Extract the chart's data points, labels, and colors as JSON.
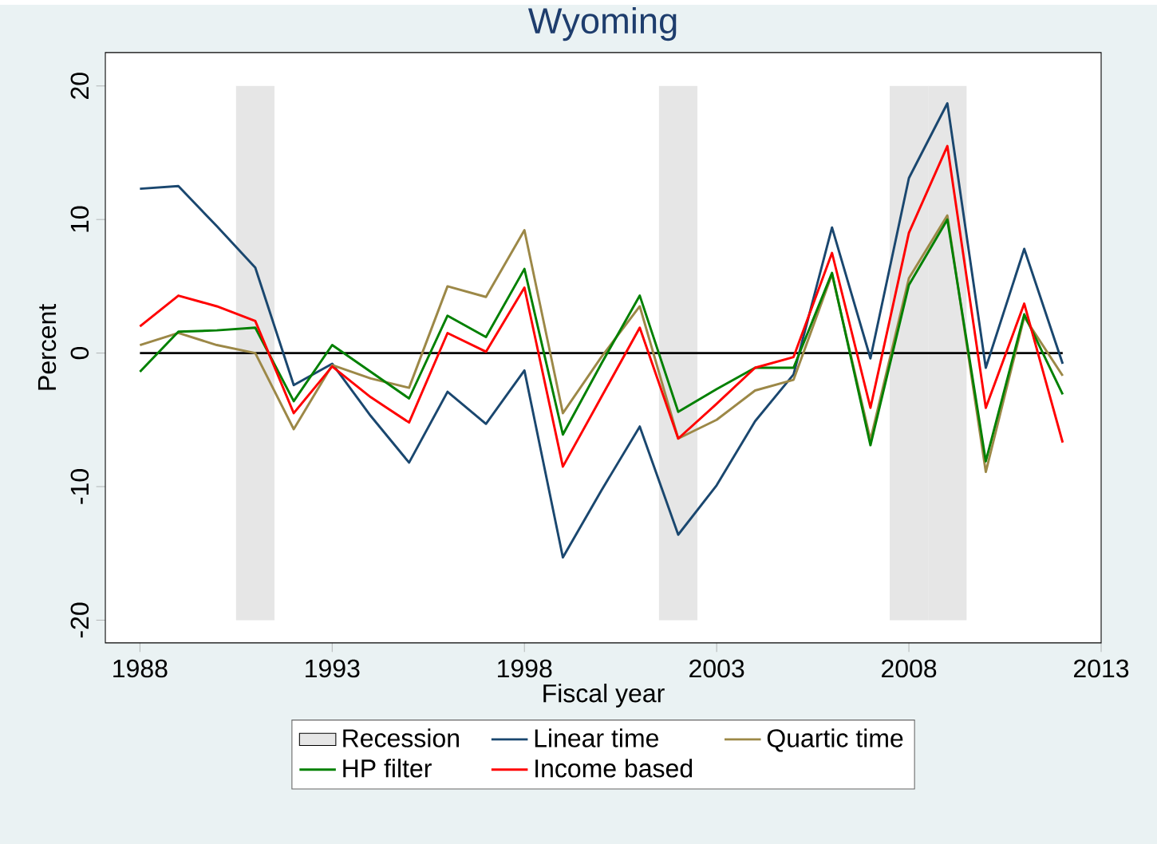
{
  "chart_data": {
    "type": "line",
    "title": "Wyoming",
    "xlabel": "Fiscal year",
    "ylabel": "Percent",
    "x": [
      1988,
      1989,
      1990,
      1991,
      1992,
      1993,
      1994,
      1995,
      1996,
      1997,
      1998,
      1999,
      2000,
      2001,
      2002,
      2003,
      2004,
      2005,
      2006,
      2007,
      2008,
      2009,
      2010,
      2011,
      2012
    ],
    "series": [
      {
        "name": "Linear time",
        "color": "#1a476f",
        "values": [
          12.3,
          12.5,
          9.5,
          6.4,
          -2.4,
          -0.8,
          -4.7,
          -8.2,
          -2.9,
          -5.3,
          -1.3,
          -15.3,
          -10.3,
          -5.5,
          -13.6,
          -9.9,
          -5.1,
          -1.6,
          9.4,
          -0.4,
          13.1,
          18.7,
          -1.1,
          7.8,
          -0.8
        ]
      },
      {
        "name": "Quartic time",
        "color": "#9c8847",
        "values": [
          0.6,
          1.5,
          0.6,
          0.0,
          -5.7,
          -0.9,
          -1.9,
          -2.6,
          5.0,
          4.2,
          9.2,
          -4.5,
          -0.3,
          3.5,
          -6.4,
          -5.0,
          -2.8,
          -2.0,
          5.9,
          -6.5,
          5.6,
          10.3,
          -8.9,
          2.7,
          -1.7
        ]
      },
      {
        "name": "HP filter",
        "color": "#008000",
        "values": [
          -1.4,
          1.6,
          1.7,
          1.9,
          -3.6,
          0.6,
          -1.4,
          -3.4,
          2.8,
          1.2,
          6.3,
          -6.1,
          -0.8,
          4.3,
          -4.4,
          -2.7,
          -1.1,
          -1.1,
          6.0,
          -6.9,
          5.1,
          10.0,
          -8.1,
          2.9,
          -3.1
        ]
      },
      {
        "name": "Income based",
        "color": "#ff0000",
        "values": [
          2.0,
          4.3,
          3.5,
          2.4,
          -4.5,
          -1.0,
          -3.3,
          -5.2,
          1.5,
          0.1,
          4.9,
          -8.5,
          -3.3,
          1.9,
          -6.4,
          -3.8,
          -1.1,
          -0.3,
          7.5,
          -4.1,
          9.0,
          15.5,
          -4.1,
          3.7,
          -6.7
        ]
      }
    ],
    "bands": [
      {
        "axis": "x",
        "from": 1990.5,
        "to": 1991.5,
        "label": "Recession",
        "color": "#e6e6e6"
      },
      {
        "axis": "x",
        "from": 2001.5,
        "to": 2002.5,
        "color": "#e6e6e6"
      },
      {
        "axis": "x",
        "from": 2007.5,
        "to": 2008.5,
        "color": "#e6e6e6"
      },
      {
        "axis": "x",
        "from": 2008.5,
        "to": 2009.5,
        "color": "#e6e6e6"
      }
    ],
    "ref_lines": [
      {
        "axis": "y",
        "value": 0,
        "color": "#000000"
      }
    ],
    "xlim": [
      1987.1,
      2013
    ],
    "ylim": [
      -21.7,
      22.5
    ],
    "xticks": [
      1988,
      1993,
      1998,
      2003,
      2008,
      2013
    ],
    "yticks": [
      -20,
      -10,
      0,
      10,
      20
    ],
    "legend": "bottom",
    "grid": false,
    "marker": "none",
    "line_style": "solid"
  }
}
